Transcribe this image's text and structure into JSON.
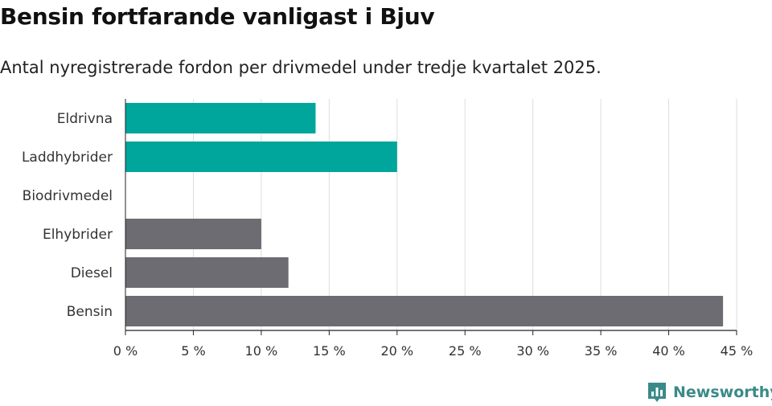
{
  "header": {
    "title": "Bensin fortfarande vanligast i Bjuv",
    "subtitle": "Antal nyregistrerade fordon per drivmedel under tredje kvartalet 2025."
  },
  "brand": {
    "name": "Newsworthy",
    "icon": "bar-chart-icon",
    "color": "#3a8a88"
  },
  "colors": {
    "highlight": "#00a59b",
    "default": "#6d6c72",
    "grid": "#dddddd",
    "axis": "#222222"
  },
  "chart_data": {
    "type": "bar",
    "orientation": "horizontal",
    "categories": [
      "Eldrivna",
      "Laddhybrider",
      "Biodrivmedel",
      "Elhybrider",
      "Diesel",
      "Bensin"
    ],
    "values": [
      14,
      20,
      0,
      10,
      12,
      44
    ],
    "highlighted": [
      true,
      true,
      true,
      false,
      false,
      false
    ],
    "xlim": [
      0,
      45
    ],
    "xticks": [
      0,
      5,
      10,
      15,
      20,
      25,
      30,
      35,
      40,
      45
    ],
    "xtick_labels": [
      "0 %",
      "5 %",
      "10 %",
      "15 %",
      "20 %",
      "25 %",
      "30 %",
      "35 %",
      "40 %",
      "45 %"
    ],
    "grid": true,
    "legend": "none"
  }
}
